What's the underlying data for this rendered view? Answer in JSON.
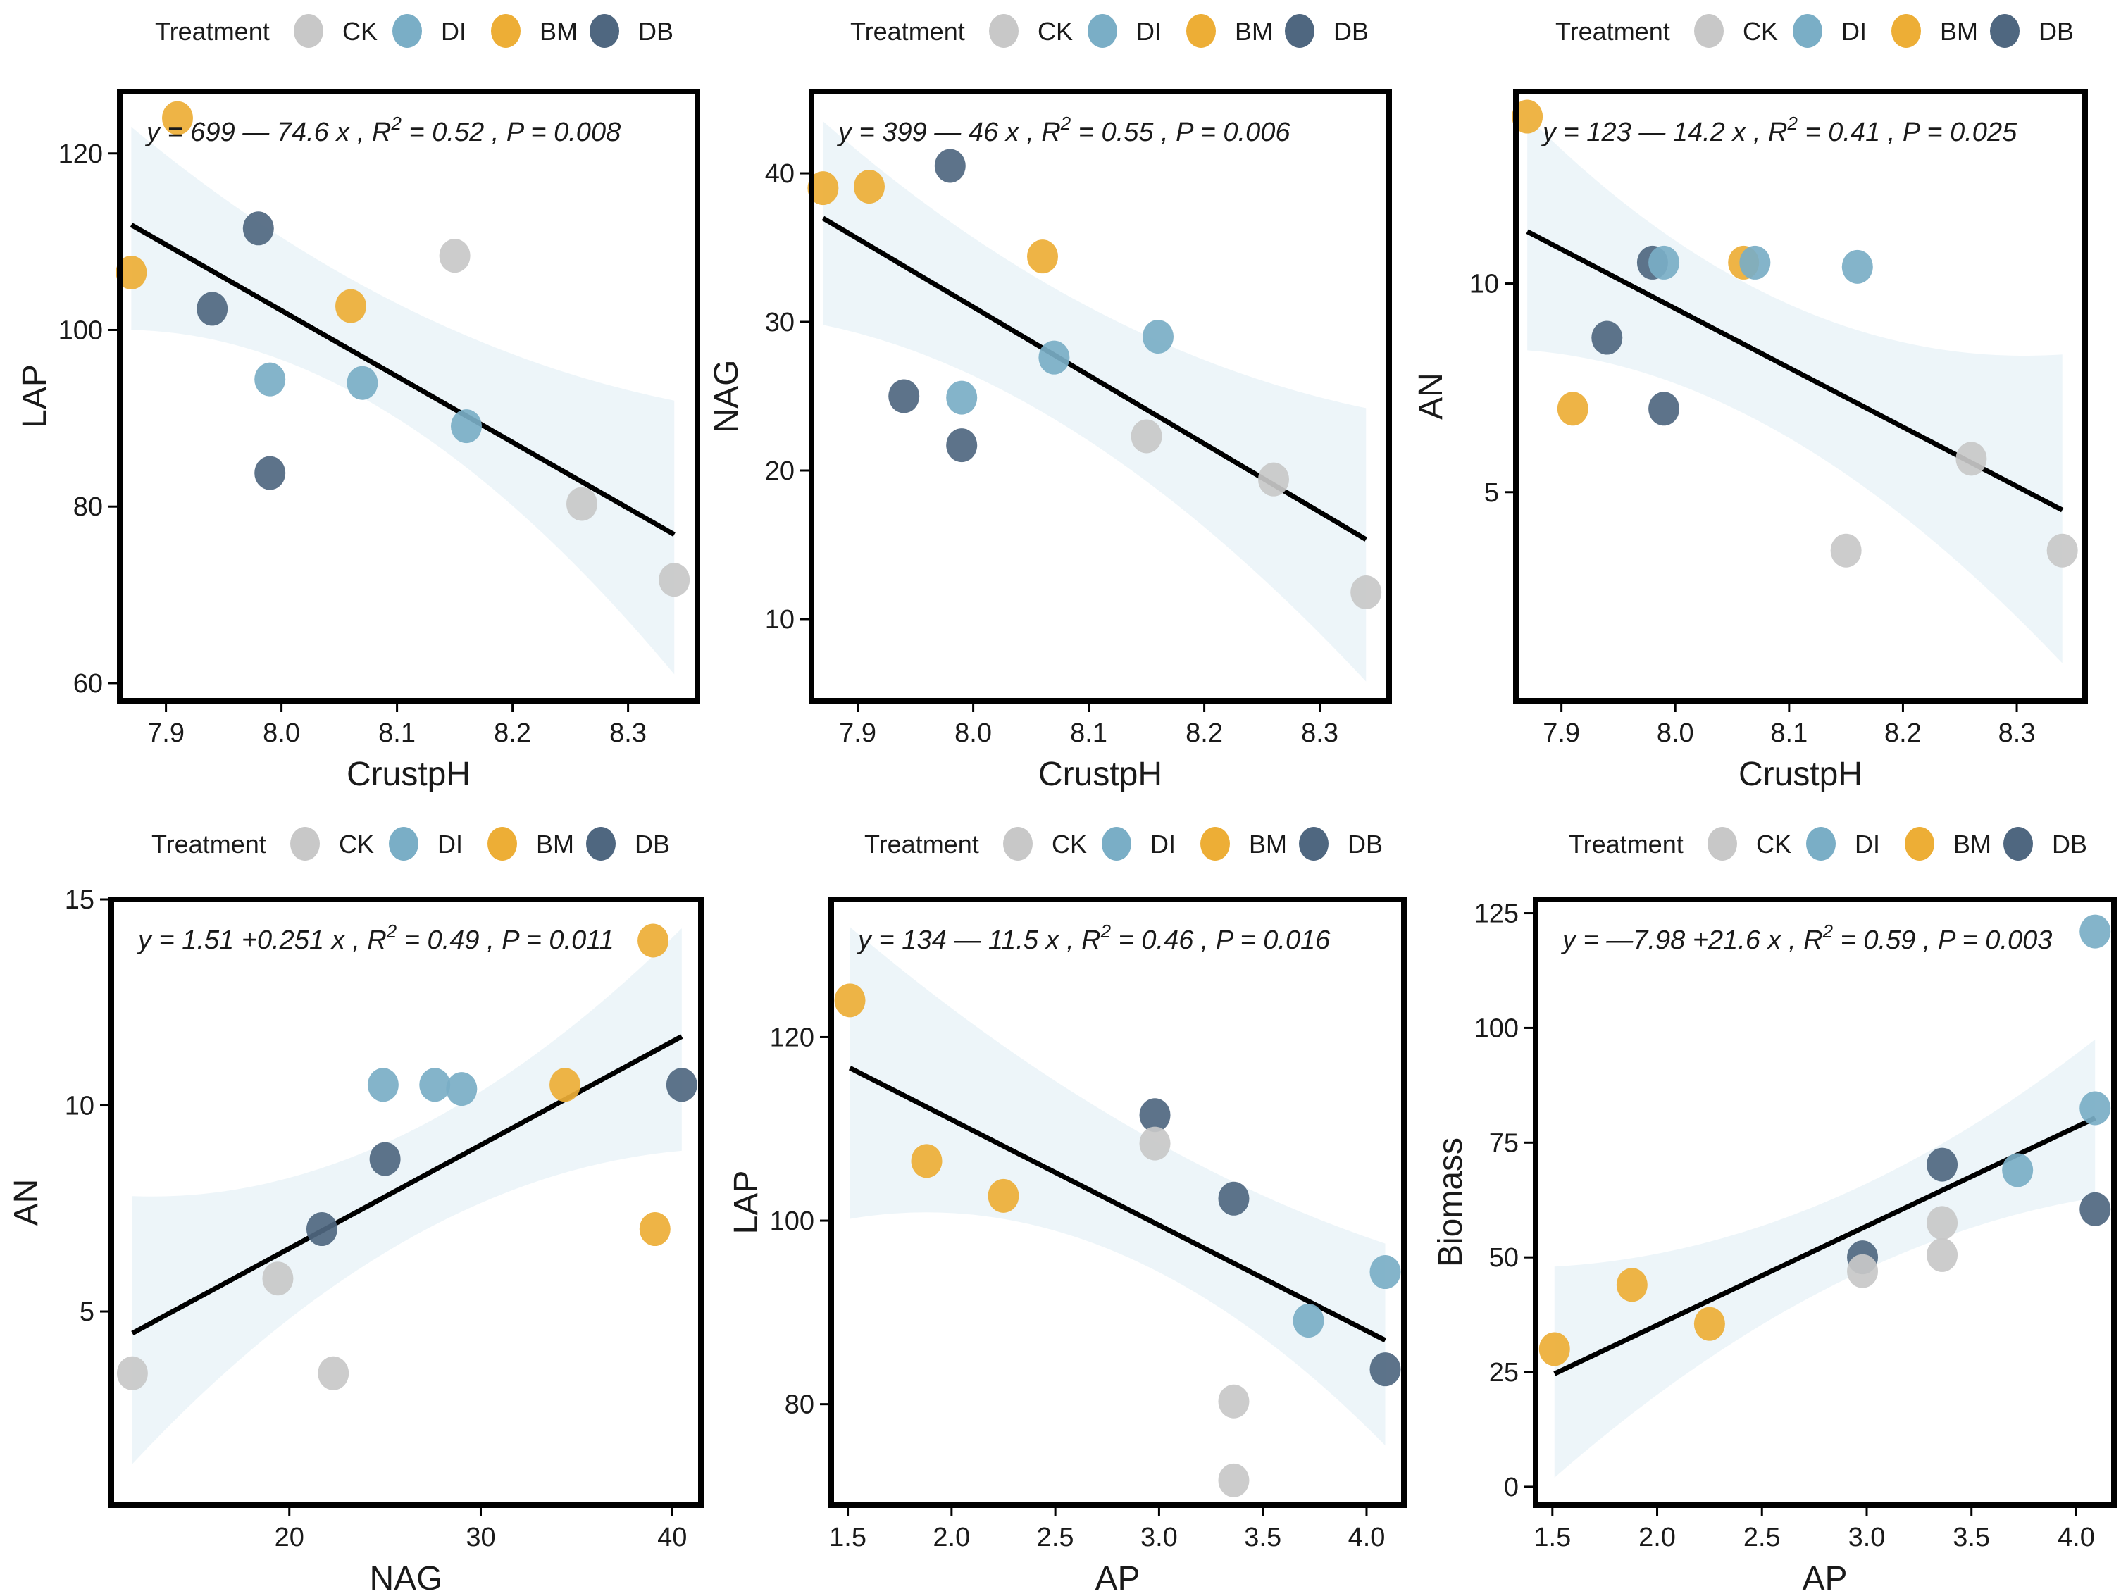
{
  "legend": {
    "title": "Treatment",
    "items": [
      {
        "key": "CK",
        "label": "CK",
        "color": "#c8c8c8"
      },
      {
        "key": "DI",
        "label": "DI",
        "color": "#7aaec6"
      },
      {
        "key": "BM",
        "label": "BM",
        "color": "#edae36"
      },
      {
        "key": "DB",
        "label": "DB",
        "color": "#4f6780"
      }
    ]
  },
  "colors": {
    "CK": "#c8c8c8",
    "DI": "#7aaec6",
    "BM": "#edae36",
    "DB": "#4f6780",
    "ribbon": "#e6f1f7",
    "line": "#000000",
    "frame": "#000000"
  },
  "chart_data": [
    {
      "type": "scatter",
      "xlabel": "CrustpH",
      "ylabel": "LAP",
      "xlim": [
        7.86,
        8.36
      ],
      "ylim": [
        58,
        127
      ],
      "xticks": [
        7.9,
        8.0,
        8.1,
        8.2,
        8.3
      ],
      "xtick_labels": [
        "7.9",
        "8.0",
        "8.1",
        "8.2",
        "8.3"
      ],
      "yticks": [
        60,
        80,
        100,
        120
      ],
      "ytick_labels": [
        "60",
        "80",
        "100",
        "120"
      ],
      "equation": "y = 699 — 74.6 x , R² = 0.52 , P = 0.008",
      "fit": {
        "intercept": 699,
        "slope": -74.6
      },
      "ribbon": [
        [
          7.87,
          123,
          100
        ],
        [
          8.1,
          103,
          90
        ],
        [
          8.34,
          92,
          61
        ]
      ],
      "points": [
        {
          "x": 7.91,
          "y": 124,
          "group": "BM"
        },
        {
          "x": 7.87,
          "y": 106.5,
          "group": "BM"
        },
        {
          "x": 8.06,
          "y": 102.7,
          "group": "BM"
        },
        {
          "x": 7.98,
          "y": 111.5,
          "group": "DB"
        },
        {
          "x": 7.94,
          "y": 102.4,
          "group": "DB"
        },
        {
          "x": 7.99,
          "y": 83.8,
          "group": "DB"
        },
        {
          "x": 7.99,
          "y": 94.4,
          "group": "DI"
        },
        {
          "x": 8.07,
          "y": 94,
          "group": "DI"
        },
        {
          "x": 8.16,
          "y": 89.1,
          "group": "DI"
        },
        {
          "x": 8.15,
          "y": 108.4,
          "group": "CK"
        },
        {
          "x": 8.26,
          "y": 80.3,
          "group": "CK"
        },
        {
          "x": 8.34,
          "y": 71.7,
          "group": "CK"
        }
      ]
    },
    {
      "type": "scatter",
      "xlabel": "CrustpH",
      "ylabel": "NAG",
      "xlim": [
        7.86,
        8.36
      ],
      "ylim": [
        4.5,
        45.5
      ],
      "xticks": [
        7.9,
        8.0,
        8.1,
        8.2,
        8.3
      ],
      "xtick_labels": [
        "7.9",
        "8.0",
        "8.1",
        "8.2",
        "8.3"
      ],
      "yticks": [
        10,
        20,
        30,
        40
      ],
      "ytick_labels": [
        "10",
        "20",
        "30",
        "40"
      ],
      "equation": "y = 399 — 46 x , R² = 0.55 , P = 0.006",
      "fit": {
        "intercept": 399,
        "slope": -46
      },
      "ribbon": [
        [
          7.87,
          43.5,
          29.8
        ],
        [
          8.1,
          31,
          22
        ],
        [
          8.34,
          24.2,
          5.8
        ]
      ],
      "points": [
        {
          "x": 7.87,
          "y": 39,
          "group": "BM"
        },
        {
          "x": 7.91,
          "y": 39.1,
          "group": "BM"
        },
        {
          "x": 8.06,
          "y": 34.4,
          "group": "BM"
        },
        {
          "x": 7.98,
          "y": 40.5,
          "group": "DB"
        },
        {
          "x": 7.94,
          "y": 25,
          "group": "DB"
        },
        {
          "x": 7.99,
          "y": 21.7,
          "group": "DB"
        },
        {
          "x": 7.99,
          "y": 24.9,
          "group": "DI"
        },
        {
          "x": 8.07,
          "y": 27.6,
          "group": "DI"
        },
        {
          "x": 8.16,
          "y": 29,
          "group": "DI"
        },
        {
          "x": 8.15,
          "y": 22.3,
          "group": "CK"
        },
        {
          "x": 8.26,
          "y": 19.4,
          "group": "CK"
        },
        {
          "x": 8.34,
          "y": 11.8,
          "group": "CK"
        }
      ]
    },
    {
      "type": "scatter",
      "xlabel": "CrustpH",
      "ylabel": "AN",
      "xlim": [
        7.86,
        8.36
      ],
      "ylim": [
        0,
        14.6
      ],
      "xticks": [
        7.9,
        8.0,
        8.1,
        8.2,
        8.3
      ],
      "xtick_labels": [
        "7.9",
        "8.0",
        "8.1",
        "8.2",
        "8.3"
      ],
      "yticks": [
        5,
        10
      ],
      "ytick_labels": [
        "5",
        "10"
      ],
      "equation": "y = 123 — 14.2 x , R² = 0.41 , P = 0.025",
      "fit": {
        "intercept": 123,
        "slope": -14.2
      },
      "ribbon": [
        [
          7.87,
          14,
          8.4
        ],
        [
          8.1,
          9.5,
          6.3
        ],
        [
          8.34,
          8.3,
          0.9
        ]
      ],
      "points": [
        {
          "x": 7.87,
          "y": 14,
          "group": "BM"
        },
        {
          "x": 7.91,
          "y": 7,
          "group": "BM"
        },
        {
          "x": 8.06,
          "y": 10.5,
          "group": "BM"
        },
        {
          "x": 7.98,
          "y": 10.5,
          "group": "DB"
        },
        {
          "x": 7.94,
          "y": 8.7,
          "group": "DB"
        },
        {
          "x": 7.99,
          "y": 7,
          "group": "DB"
        },
        {
          "x": 7.99,
          "y": 10.5,
          "group": "DI"
        },
        {
          "x": 8.07,
          "y": 10.5,
          "group": "DI"
        },
        {
          "x": 8.16,
          "y": 10.4,
          "group": "DI"
        },
        {
          "x": 8.15,
          "y": 3.6,
          "group": "CK"
        },
        {
          "x": 8.26,
          "y": 5.8,
          "group": "CK"
        },
        {
          "x": 8.34,
          "y": 3.6,
          "group": "CK"
        }
      ]
    },
    {
      "type": "scatter",
      "xlabel": "NAG",
      "ylabel": "AN",
      "xlim": [
        10.7,
        41.5
      ],
      "ylim": [
        0.3,
        15
      ],
      "xticks": [
        20,
        30,
        40
      ],
      "xtick_labels": [
        "20",
        "30",
        "40"
      ],
      "yticks": [
        5,
        10,
        15
      ],
      "ytick_labels": [
        "5",
        "10",
        "15"
      ],
      "equation": "y = 1.51 +0.251 x , R² = 0.49 , P = 0.011",
      "fit": {
        "intercept": 1.51,
        "slope": 0.251
      },
      "ribbon": [
        [
          11.8,
          7.8,
          1.3
        ],
        [
          26,
          9.3,
          6.7
        ],
        [
          40.5,
          14.3,
          8.9
        ]
      ],
      "points": [
        {
          "x": 39,
          "y": 14,
          "group": "BM"
        },
        {
          "x": 34.4,
          "y": 10.5,
          "group": "BM"
        },
        {
          "x": 39.1,
          "y": 7,
          "group": "BM"
        },
        {
          "x": 40.5,
          "y": 10.5,
          "group": "DB"
        },
        {
          "x": 25,
          "y": 8.7,
          "group": "DB"
        },
        {
          "x": 21.7,
          "y": 7,
          "group": "DB"
        },
        {
          "x": 24.9,
          "y": 10.5,
          "group": "DI"
        },
        {
          "x": 27.6,
          "y": 10.5,
          "group": "DI"
        },
        {
          "x": 29,
          "y": 10.4,
          "group": "DI"
        },
        {
          "x": 11.8,
          "y": 3.5,
          "group": "CK"
        },
        {
          "x": 19.4,
          "y": 5.8,
          "group": "CK"
        },
        {
          "x": 22.3,
          "y": 3.5,
          "group": "CK"
        }
      ]
    },
    {
      "type": "scatter",
      "xlabel": "AP",
      "ylabel": "LAP",
      "xlim": [
        1.42,
        4.18
      ],
      "ylim": [
        69,
        135
      ],
      "xticks": [
        1.5,
        2.0,
        2.5,
        3.0,
        3.5,
        4.0
      ],
      "xtick_labels": [
        "1.5",
        "2.0",
        "2.5",
        "3.0",
        "3.5",
        "4.0"
      ],
      "yticks": [
        80,
        100,
        120
      ],
      "ytick_labels": [
        "80",
        "100",
        "120"
      ],
      "equation": "y = 134 — 11.5 x , R² = 0.46 , P = 0.016",
      "fit": {
        "intercept": 134,
        "slope": -11.5
      },
      "ribbon": [
        [
          1.51,
          132,
          100.2
        ],
        [
          2.8,
          111,
          96.5
        ],
        [
          4.09,
          97.5,
          75.5
        ]
      ],
      "points": [
        {
          "x": 1.51,
          "y": 124,
          "group": "BM"
        },
        {
          "x": 1.88,
          "y": 106.5,
          "group": "BM"
        },
        {
          "x": 2.25,
          "y": 102.7,
          "group": "BM"
        },
        {
          "x": 2.98,
          "y": 111.5,
          "group": "DB"
        },
        {
          "x": 3.36,
          "y": 102.4,
          "group": "DB"
        },
        {
          "x": 4.09,
          "y": 83.8,
          "group": "DB"
        },
        {
          "x": 4.09,
          "y": 94.4,
          "group": "DI"
        },
        {
          "x": 3.72,
          "y": 89.1,
          "group": "DI"
        },
        {
          "x": 2.98,
          "y": 108.4,
          "group": "CK"
        },
        {
          "x": 3.36,
          "y": 80.3,
          "group": "CK"
        },
        {
          "x": 3.36,
          "y": 71.7,
          "group": "CK"
        }
      ]
    },
    {
      "type": "scatter",
      "xlabel": "AP",
      "ylabel": "Biomass",
      "xlim": [
        1.42,
        4.18
      ],
      "ylim": [
        -4,
        128
      ],
      "xticks": [
        1.5,
        2.0,
        2.5,
        3.0,
        3.5,
        4.0
      ],
      "xtick_labels": [
        "1.5",
        "2.0",
        "2.5",
        "3.0",
        "3.5",
        "4.0"
      ],
      "yticks": [
        0,
        25,
        50,
        75,
        100,
        125
      ],
      "ytick_labels": [
        "0",
        "25",
        "50",
        "75",
        "100",
        "125"
      ],
      "equation": "y = —7.98 +21.6 x , R² = 0.59 , P = 0.003",
      "fit": {
        "intercept": -7.98,
        "slope": 21.6
      },
      "ribbon": [
        [
          1.51,
          48,
          2
        ],
        [
          2.8,
          62,
          43
        ],
        [
          4.09,
          97.5,
          63
        ]
      ],
      "points": [
        {
          "x": 1.51,
          "y": 30,
          "group": "BM"
        },
        {
          "x": 1.88,
          "y": 44,
          "group": "BM"
        },
        {
          "x": 2.25,
          "y": 35.5,
          "group": "BM"
        },
        {
          "x": 2.98,
          "y": 50,
          "group": "DB"
        },
        {
          "x": 3.36,
          "y": 70.2,
          "group": "DB"
        },
        {
          "x": 4.09,
          "y": 60.5,
          "group": "DB"
        },
        {
          "x": 4.09,
          "y": 121,
          "group": "DI"
        },
        {
          "x": 4.09,
          "y": 82.5,
          "group": "DI"
        },
        {
          "x": 3.72,
          "y": 69,
          "group": "DI"
        },
        {
          "x": 2.98,
          "y": 47,
          "group": "CK"
        },
        {
          "x": 3.36,
          "y": 57.5,
          "group": "CK"
        },
        {
          "x": 3.36,
          "y": 50.5,
          "group": "CK"
        }
      ]
    }
  ]
}
